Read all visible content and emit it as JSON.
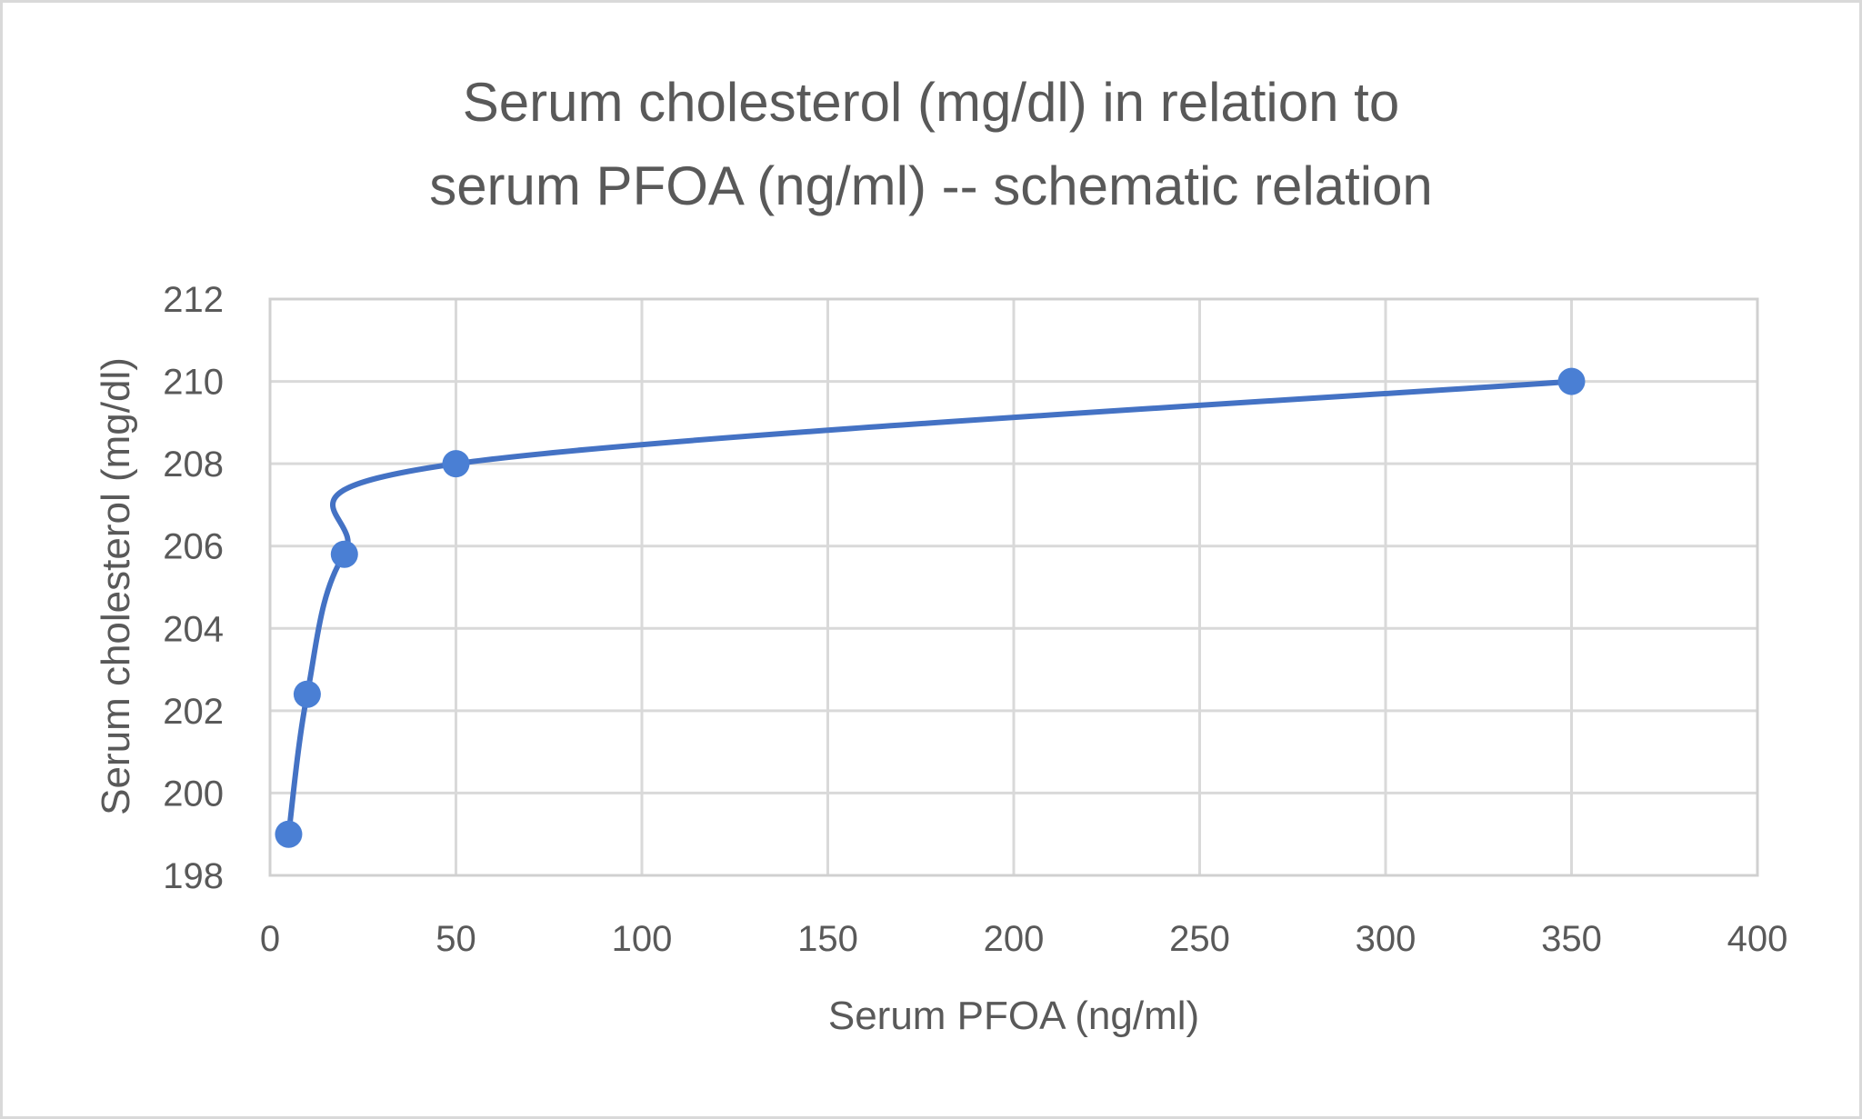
{
  "chart": {
    "title_line1": "Serum cholesterol (mg/dl) in relation to",
    "title_line2": "serum PFOA (ng/ml) -- schematic relation",
    "xlabel": "Serum PFOA (ng/ml)",
    "ylabel": "Serum cholesterol (mg/dl)",
    "colors": {
      "line": "#4472C4",
      "marker": "#4A7FD4",
      "grid": "#d9d9d9",
      "text": "#595959"
    }
  },
  "chart_data": {
    "type": "scatter",
    "subtype": "smooth line with markers",
    "title": "Serum cholesterol (mg/dl) in relation to serum PFOA (ng/ml) -- schematic relation",
    "xlabel": "Serum PFOA (ng/ml)",
    "ylabel": "Serum cholesterol (mg/dl)",
    "xlim": [
      0,
      400
    ],
    "ylim": [
      198,
      212
    ],
    "x_ticks": [
      0,
      50,
      100,
      150,
      200,
      250,
      300,
      350,
      400
    ],
    "y_ticks": [
      198,
      200,
      202,
      204,
      206,
      208,
      210,
      212
    ],
    "grid": true,
    "legend": null,
    "series": [
      {
        "name": "Serum cholesterol",
        "x": [
          5,
          10,
          20,
          50,
          350
        ],
        "y": [
          199,
          202.4,
          205.8,
          208,
          210
        ]
      }
    ]
  }
}
